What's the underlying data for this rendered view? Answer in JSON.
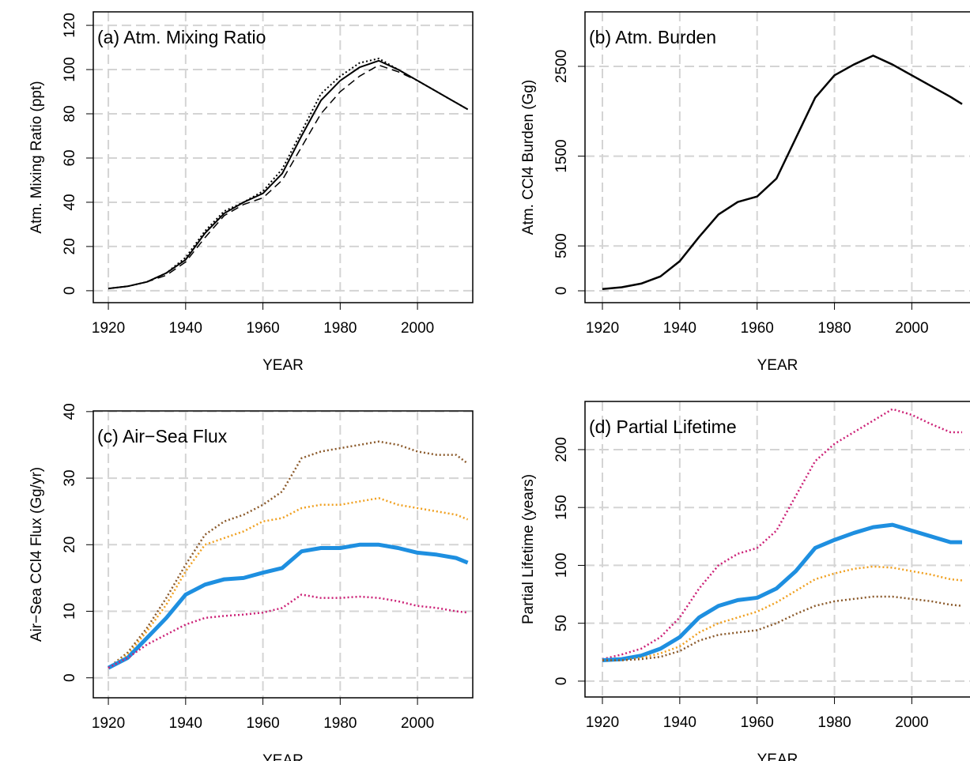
{
  "chart_data": [
    {
      "type": "line",
      "title": "(a) Atm. Mixing Ratio",
      "xlabel": "YEAR",
      "ylabel": "Atm. Mixing Ratio (ppt)",
      "x": [
        1920,
        1925,
        1930,
        1935,
        1940,
        1945,
        1950,
        1955,
        1960,
        1965,
        1970,
        1975,
        1980,
        1985,
        1990,
        1995,
        2000,
        2005,
        2010,
        2013
      ],
      "series": [
        {
          "color": "#000000",
          "dash": "solid",
          "width": 2,
          "values": [
            1,
            2,
            4,
            8,
            14,
            26,
            35,
            40,
            44,
            53,
            70,
            86,
            95,
            101,
            104,
            100,
            95,
            90,
            85,
            82
          ]
        },
        {
          "color": "#000000",
          "dash": "dashed",
          "width": 1.5,
          "values": [
            1,
            2,
            4,
            7,
            13,
            24,
            34,
            39,
            42,
            50,
            65,
            80,
            90,
            97,
            102,
            99,
            95,
            90,
            85,
            82
          ]
        },
        {
          "color": "#000000",
          "dash": "dotted",
          "width": 2,
          "values": [
            1,
            2,
            4,
            8,
            15,
            27,
            36,
            40,
            45,
            55,
            72,
            89,
            97,
            103,
            105,
            100,
            95,
            90,
            85,
            82
          ]
        }
      ],
      "xlim": [
        1916.1,
        2014.3
      ],
      "ylim": [
        -5.4,
        126.1
      ],
      "xticks": [
        1920,
        1940,
        1960,
        1980,
        2000
      ],
      "yticks": [
        0,
        20,
        40,
        60,
        80,
        100,
        120
      ],
      "grid": true
    },
    {
      "type": "line",
      "title": "(b) Atm. Burden",
      "xlabel": "YEAR",
      "ylabel": "Atm. CCl4 Burden (Gg)",
      "x": [
        1920,
        1925,
        1930,
        1935,
        1940,
        1945,
        1950,
        1955,
        1960,
        1965,
        1970,
        1975,
        1980,
        1985,
        1990,
        1995,
        2000,
        2005,
        2010,
        2013
      ],
      "series": [
        {
          "color": "#000000",
          "dash": "solid",
          "width": 2.5,
          "values": [
            20,
            40,
            80,
            160,
            330,
            600,
            850,
            990,
            1050,
            1250,
            1700,
            2150,
            2400,
            2520,
            2620,
            2520,
            2400,
            2280,
            2160,
            2080
          ]
        }
      ],
      "xlim": [
        1915.5,
        2017.7
      ],
      "ylim": [
        -132,
        3107
      ],
      "xticks": [
        1920,
        1940,
        1960,
        1980,
        2000
      ],
      "yticks": [
        0,
        500,
        1500,
        2500
      ],
      "grid": true
    },
    {
      "type": "line",
      "title": "(c) Air−Sea Flux",
      "xlabel": "YEAR",
      "ylabel": "Air−Sea CCl4 Flux (Gg/yr)",
      "x": [
        1920,
        1925,
        1930,
        1935,
        1940,
        1945,
        1950,
        1955,
        1960,
        1965,
        1970,
        1975,
        1980,
        1985,
        1990,
        1995,
        2000,
        2005,
        2010,
        2013
      ],
      "series": [
        {
          "color": "#8b5a2b",
          "dash": "dotted",
          "width": 2.5,
          "values": [
            1.5,
            3.8,
            7.5,
            12,
            17,
            21.5,
            23.5,
            24.5,
            26,
            28,
            33,
            34,
            34.5,
            35,
            35.5,
            35,
            34,
            33.5,
            33.5,
            32.2
          ]
        },
        {
          "color": "#f0a020",
          "dash": "dotted",
          "width": 2.5,
          "values": [
            1.5,
            3.5,
            7,
            11,
            16,
            20,
            21,
            22,
            23.5,
            24,
            25.5,
            26,
            26,
            26.5,
            27,
            26,
            25.5,
            25,
            24.5,
            23.8
          ]
        },
        {
          "color": "#1e8fe0",
          "dash": "solid",
          "width": 5,
          "values": [
            1.5,
            3,
            6,
            9,
            12.5,
            14,
            14.8,
            15,
            15.8,
            16.5,
            19,
            19.5,
            19.5,
            20,
            20,
            19.5,
            18.8,
            18.5,
            18,
            17.3
          ]
        },
        {
          "color": "#cc2277",
          "dash": "dotted",
          "width": 2.5,
          "values": [
            1.5,
            3,
            5,
            6.5,
            8,
            9,
            9.3,
            9.5,
            9.8,
            10.5,
            12.5,
            12,
            12,
            12.2,
            12,
            11.5,
            10.8,
            10.5,
            10,
            9.8
          ]
        }
      ],
      "xlim": [
        1916.1,
        2014.3
      ],
      "ylim": [
        -3,
        40.1
      ],
      "xticks": [
        1920,
        1940,
        1960,
        1980,
        2000
      ],
      "yticks": [
        0,
        10,
        20,
        30,
        40
      ],
      "grid": true
    },
    {
      "type": "line",
      "title": "(d) Partial Lifetime",
      "xlabel": "YEAR",
      "ylabel": "Partial Lifetime (years)",
      "x": [
        1920,
        1925,
        1930,
        1935,
        1940,
        1945,
        1950,
        1955,
        1960,
        1965,
        1970,
        1975,
        1980,
        1985,
        1990,
        1995,
        2000,
        2005,
        2010,
        2013
      ],
      "series": [
        {
          "color": "#cc2277",
          "dash": "dotted",
          "width": 2.5,
          "values": [
            19,
            23,
            28,
            38,
            55,
            80,
            100,
            110,
            115,
            130,
            160,
            190,
            205,
            215,
            225,
            235,
            230,
            222,
            215,
            215
          ]
        },
        {
          "color": "#1e8fe0",
          "dash": "solid",
          "width": 5,
          "values": [
            18,
            19,
            22,
            28,
            38,
            55,
            65,
            70,
            72,
            80,
            95,
            115,
            122,
            128,
            133,
            135,
            130,
            125,
            120,
            120
          ]
        },
        {
          "color": "#f0a020",
          "dash": "dotted",
          "width": 2.5,
          "values": [
            18,
            18,
            20,
            24,
            30,
            42,
            50,
            55,
            60,
            68,
            78,
            88,
            93,
            97,
            99,
            98,
            95,
            92,
            88,
            87
          ]
        },
        {
          "color": "#8b5a2b",
          "dash": "dotted",
          "width": 2.5,
          "values": [
            18,
            18,
            19,
            21,
            26,
            35,
            40,
            42,
            44,
            50,
            58,
            65,
            69,
            71,
            73,
            73,
            71,
            69,
            66,
            65
          ]
        }
      ],
      "xlim": [
        1915.5,
        2017.7
      ],
      "ylim": [
        -13.7,
        241.6
      ],
      "xticks": [
        1920,
        1940,
        1960,
        1980,
        2000
      ],
      "yticks": [
        0,
        50,
        100,
        150,
        200
      ],
      "grid": true
    }
  ]
}
